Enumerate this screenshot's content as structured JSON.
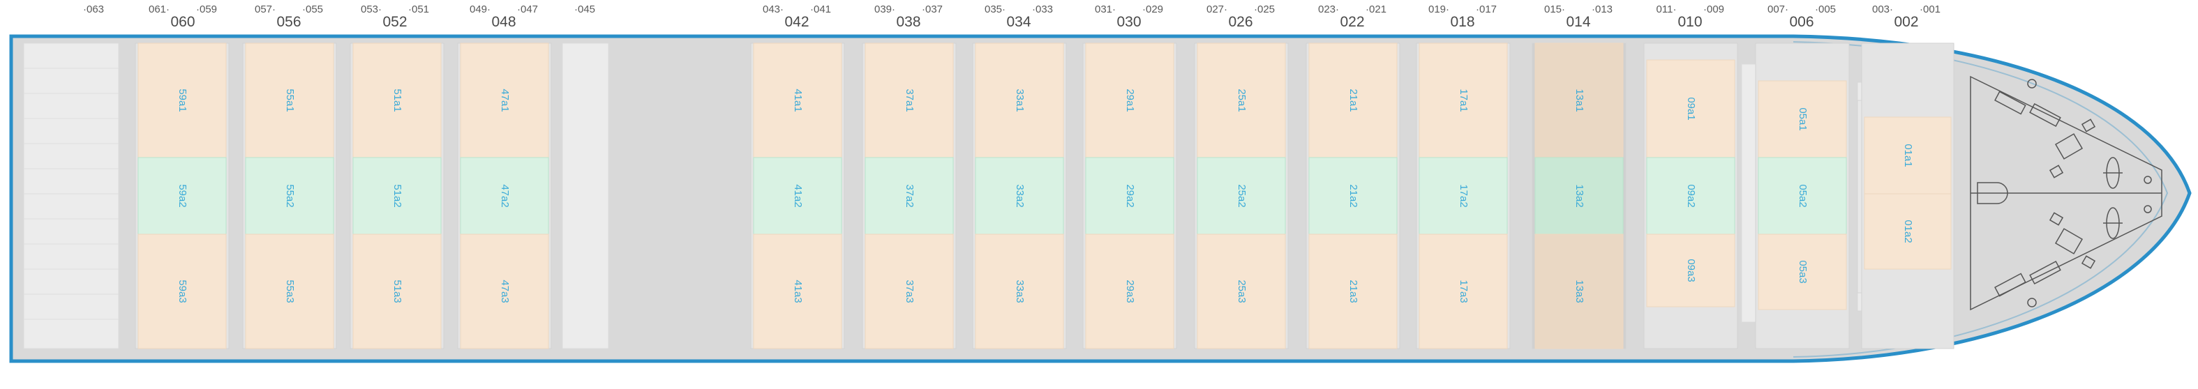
{
  "bays": [
    {
      "major": "",
      "left": "",
      "right": "063",
      "slots": []
    },
    {
      "major": "060",
      "left": "061",
      "right": "059",
      "slots": [
        "59a1",
        "59a2",
        "59a3"
      ]
    },
    {
      "major": "056",
      "left": "057",
      "right": "055",
      "slots": [
        "55a1",
        "55a2",
        "55a3"
      ]
    },
    {
      "major": "052",
      "left": "053",
      "right": "051",
      "slots": [
        "51a1",
        "51a2",
        "51a3"
      ]
    },
    {
      "major": "048",
      "left": "049",
      "right": "047",
      "slots": [
        "47a1",
        "47a2",
        "47a3"
      ]
    },
    {
      "major": "",
      "left": "",
      "right": "045",
      "slots": []
    },
    {
      "major": "042",
      "left": "043",
      "right": "041",
      "slots": [
        "41a1",
        "41a2",
        "41a3"
      ]
    },
    {
      "major": "038",
      "left": "039",
      "right": "037",
      "slots": [
        "37a1",
        "37a2",
        "37a3"
      ]
    },
    {
      "major": "034",
      "left": "035",
      "right": "033",
      "slots": [
        "33a1",
        "33a2",
        "33a3"
      ]
    },
    {
      "major": "030",
      "left": "031",
      "right": "029",
      "slots": [
        "29a1",
        "29a2",
        "29a3"
      ]
    },
    {
      "major": "026",
      "left": "027",
      "right": "025",
      "slots": [
        "25a1",
        "25a2",
        "25a3"
      ]
    },
    {
      "major": "022",
      "left": "023",
      "right": "021",
      "slots": [
        "21a1",
        "21a2",
        "21a3"
      ]
    },
    {
      "major": "018",
      "left": "019",
      "right": "017",
      "slots": [
        "17a1",
        "17a2",
        "17a3"
      ]
    },
    {
      "major": "014",
      "left": "015",
      "right": "013",
      "slots": [
        "13a1",
        "13a2",
        "13a3"
      ]
    },
    {
      "major": "010",
      "left": "011",
      "right": "009",
      "slots": [
        "09a1",
        "09a2",
        "09a3"
      ]
    },
    {
      "major": "006",
      "left": "007",
      "right": "005",
      "slots": [
        "05a1",
        "05a2",
        "05a3"
      ]
    },
    {
      "major": "002",
      "left": "003",
      "right": "001",
      "slots": [
        "01a1",
        "01a2"
      ]
    }
  ],
  "colors": {
    "hull_outline": "#2a8fc8",
    "deck": "#d9d9d9",
    "slot_outer": "#f7e5d2",
    "slot_middle": "#d9f2e3",
    "slot_selected": "#ead8c4",
    "slot_label": "#3aaad8",
    "bay_label": "#4a4a4a"
  }
}
